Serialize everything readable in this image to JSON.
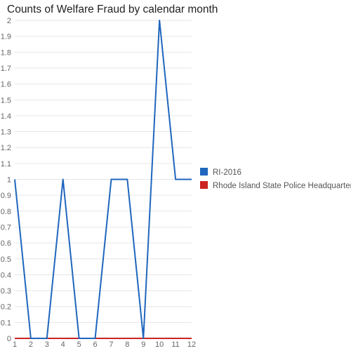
{
  "chart_data": {
    "type": "line",
    "title": "Counts of Welfare Fraud by calendar month",
    "xlabel": "",
    "ylabel": "",
    "x": [
      1,
      2,
      3,
      4,
      5,
      6,
      7,
      8,
      9,
      10,
      11,
      12
    ],
    "ylim": [
      0,
      2
    ],
    "yticks": [
      0,
      0.1,
      0.2,
      0.3,
      0.4,
      0.5,
      0.6,
      0.7,
      0.8,
      0.9,
      1,
      1.1,
      1.2,
      1.3,
      1.4,
      1.5,
      1.6,
      1.7,
      1.8,
      1.9,
      2
    ],
    "grid": true,
    "legend_position": "right",
    "series": [
      {
        "name": "RI-2016",
        "color": "#1f66bd",
        "values": [
          1,
          0,
          0,
          1,
          0,
          0,
          1,
          1,
          0,
          2,
          1,
          1
        ]
      },
      {
        "name": "Rhode Island State Police Headquarters",
        "color": "#cc2222",
        "values": [
          0,
          0,
          0,
          0,
          0,
          0,
          0,
          0,
          0,
          0,
          0,
          0
        ]
      }
    ]
  }
}
